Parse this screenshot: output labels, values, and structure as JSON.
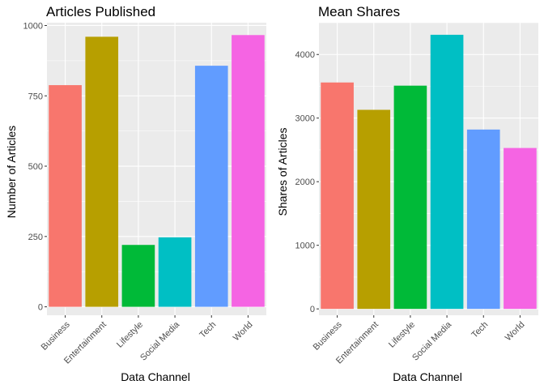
{
  "chart_data": [
    {
      "type": "bar",
      "title": "Articles Published",
      "xlabel": "Data Channel",
      "ylabel": "Number of Articles",
      "categories": [
        "Business",
        "Entertainment",
        "Lifestyle",
        "Social Media",
        "Tech",
        "World"
      ],
      "values": [
        788,
        960,
        220,
        247,
        857,
        966
      ],
      "ylim": [
        -30,
        1010
      ],
      "yticks": [
        0,
        250,
        500,
        750,
        1000
      ],
      "colors": [
        "#F8766D",
        "#B79F00",
        "#00BA38",
        "#00BFC4",
        "#619CFF",
        "#F564E3"
      ],
      "grid": true,
      "legend": "none"
    },
    {
      "type": "bar",
      "title": "Mean Shares",
      "xlabel": "Data Channel",
      "ylabel": "Shares of Articles",
      "categories": [
        "Business",
        "Entertainment",
        "Lifestyle",
        "Social Media",
        "Tech",
        "World"
      ],
      "values": [
        3560,
        3130,
        3510,
        4310,
        2820,
        2530
      ],
      "ylim": [
        -100,
        4500
      ],
      "yticks": [
        0,
        1000,
        2000,
        3000,
        4000
      ],
      "colors": [
        "#F8766D",
        "#B79F00",
        "#00BA38",
        "#00BFC4",
        "#619CFF",
        "#F564E3"
      ],
      "grid": true,
      "legend": "none"
    }
  ]
}
